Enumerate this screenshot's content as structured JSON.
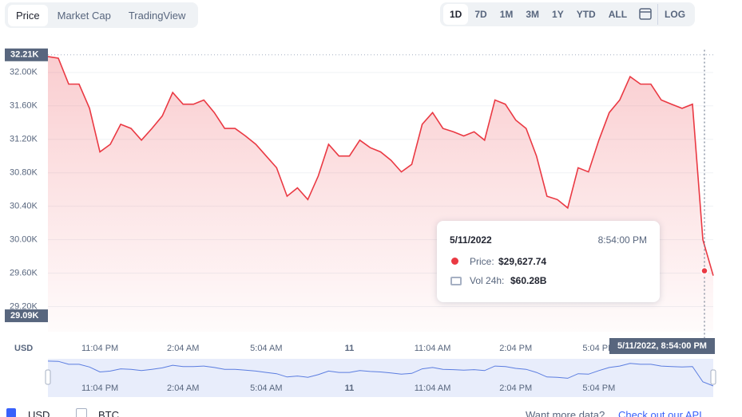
{
  "ui": {
    "tabs": [
      "Price",
      "Market Cap",
      "TradingView"
    ],
    "ranges": [
      "1D",
      "7D",
      "1M",
      "3M",
      "1Y",
      "YTD",
      "ALL"
    ],
    "log": "LOG",
    "tooltip": {
      "date": "5/11/2022",
      "time": "8:54:00 PM",
      "price_label": "Price:",
      "vol_label": "Vol 24h:",
      "vol": "$60.28B"
    },
    "footer": {
      "usd": "USD",
      "btc": "BTC",
      "more": "Want more data?",
      "api": "Check out our API"
    }
  },
  "chart_data": {
    "type": "line",
    "currency": "USD",
    "color": "#ea3943",
    "grid": true,
    "categories": [
      null,
      null,
      null,
      null,
      null,
      "11:04 PM",
      null,
      null,
      null,
      null,
      null,
      null,
      null,
      "2:04 AM",
      null,
      null,
      null,
      null,
      null,
      null,
      null,
      "5:04 AM",
      null,
      null,
      null,
      null,
      null,
      null,
      null,
      "11",
      null,
      null,
      null,
      null,
      null,
      null,
      null,
      "11:04 AM",
      null,
      null,
      null,
      null,
      null,
      null,
      null,
      "2:04 PM",
      null,
      null,
      null,
      null,
      null,
      null,
      null,
      "5:04 PM",
      null,
      null,
      null,
      null,
      null,
      null,
      null,
      null,
      null,
      null,
      null
    ],
    "series": [
      {
        "name": "Price",
        "color": "#ea3943",
        "values": [
          32190,
          32170,
          31860,
          31860,
          31570,
          31050,
          31140,
          31380,
          31330,
          31190,
          31330,
          31480,
          31760,
          31620,
          31620,
          31670,
          31520,
          31330,
          31330,
          31240,
          31140,
          31000,
          30860,
          30520,
          30620,
          30480,
          30760,
          31140,
          31000,
          31000,
          31190,
          31100,
          31050,
          30950,
          30810,
          30900,
          31380,
          31520,
          31330,
          31290,
          31240,
          31290,
          31190,
          31670,
          31620,
          31430,
          31330,
          31000,
          30520,
          30480,
          30380,
          30860,
          30810,
          31190,
          31520,
          31670,
          31950,
          31860,
          31860,
          31670,
          31620,
          31570,
          31620,
          30000,
          29570
        ]
      }
    ],
    "ylim": [
      28900,
      32270
    ],
    "yticks": [
      {
        "value": 29200,
        "label": "29.20K"
      },
      {
        "value": 29600,
        "label": "29.60K"
      },
      {
        "value": 30000,
        "label": "30.00K"
      },
      {
        "value": 30400,
        "label": "30.40K"
      },
      {
        "value": 30800,
        "label": "30.80K"
      },
      {
        "value": 31200,
        "label": "31.20K"
      },
      {
        "value": 31600,
        "label": "31.60K"
      },
      {
        "value": 32000,
        "label": "32.00K"
      }
    ],
    "high": {
      "value": 32210,
      "label": "32.21K"
    },
    "low": {
      "value": 29090,
      "label": "29.09K"
    },
    "marker": {
      "value": 29627.74,
      "label": "$29,627.74",
      "time": "5/11/2022, 8:54:00 PM"
    }
  }
}
